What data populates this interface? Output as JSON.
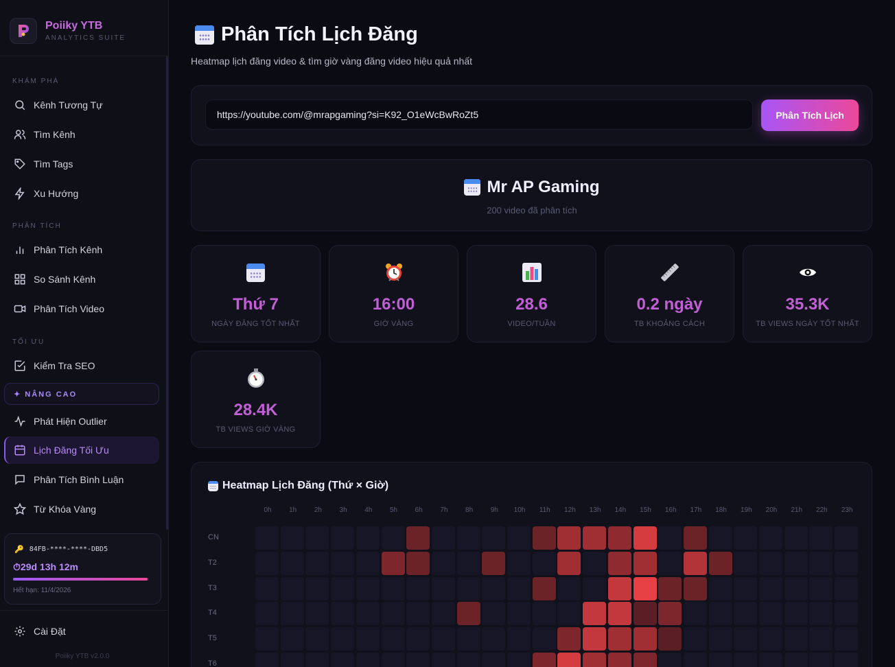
{
  "brand": {
    "name": "Poiiky YTB",
    "subtitle": "ANALYTICS SUITE"
  },
  "sidebar": {
    "sections": [
      {
        "title": "KHÁM PHÁ",
        "items": [
          {
            "label": "Kênh Tương Tự",
            "icon": "search-icon"
          },
          {
            "label": "Tìm Kênh",
            "icon": "users-icon"
          },
          {
            "label": "Tìm Tags",
            "icon": "tag-icon"
          },
          {
            "label": "Xu Hướng",
            "icon": "bolt-icon"
          }
        ]
      },
      {
        "title": "PHÂN TÍCH",
        "items": [
          {
            "label": "Phân Tích Kênh",
            "icon": "bar-chart-icon"
          },
          {
            "label": "So Sánh Kênh",
            "icon": "grid-icon"
          },
          {
            "label": "Phân Tích Video",
            "icon": "video-icon"
          }
        ]
      },
      {
        "title": "TỐI ƯU",
        "items": [
          {
            "label": "Kiểm Tra SEO",
            "icon": "check-square-icon"
          }
        ]
      }
    ],
    "advanced_badge": "✦ NÂNG CAO",
    "advanced_items": [
      {
        "label": "Phát Hiện Outlier",
        "icon": "activity-icon"
      },
      {
        "label": "Lịch Đăng Tối Ưu",
        "icon": "calendar-icon",
        "active": true
      },
      {
        "label": "Phân Tích Bình Luận",
        "icon": "message-icon"
      },
      {
        "label": "Từ Khóa Vàng",
        "icon": "star-icon"
      }
    ],
    "license": {
      "key": "84FB-****-****-DBD5",
      "remaining": "29d 13h 12m",
      "remaining_fraction": 0.99,
      "expires": "Hết hạn: 11/4/2026"
    },
    "settings_label": "Cài Đặt",
    "version": "Poiiky YTB v2.0.0"
  },
  "page": {
    "title": "Phân Tích Lịch Đăng",
    "subtitle": "Heatmap lịch đăng video & tìm giờ vàng đăng video hiệu quả nhất"
  },
  "search": {
    "value": "https://youtube.com/@mrapgaming?si=K92_O1eWcBwRoZt5",
    "button_label": "Phân Tích Lịch"
  },
  "channel": {
    "name": "Mr AP Gaming",
    "videos_analyzed": "200 video đã phân tích"
  },
  "stats": [
    {
      "icon": "calendar-icon",
      "value": "Thứ 7",
      "label": "NGÀY ĐĂNG TỐT NHẤT"
    },
    {
      "icon": "alarm-clock-icon",
      "value": "16:00",
      "label": "GIỜ VÀNG"
    },
    {
      "icon": "bar-chart-icon",
      "value": "28.6",
      "label": "VIDEO/TUẦN"
    },
    {
      "icon": "ruler-icon",
      "value": "0.2 ngày",
      "label": "TB KHOẢNG CÁCH"
    },
    {
      "icon": "eye-icon",
      "value": "35.3K",
      "label": "TB VIEWS NGÀY TỐT NHẤT"
    },
    {
      "icon": "stopwatch-icon",
      "value": "28.4K",
      "label": "TB VIEWS GIỜ VÀNG"
    }
  ],
  "chart_data": {
    "type": "heatmap",
    "title": "Heatmap Lịch Đăng (Thứ × Giờ)",
    "x": [
      "0h",
      "1h",
      "2h",
      "3h",
      "4h",
      "5h",
      "6h",
      "7h",
      "8h",
      "9h",
      "10h",
      "11h",
      "12h",
      "13h",
      "14h",
      "15h",
      "16h",
      "17h",
      "18h",
      "19h",
      "20h",
      "21h",
      "22h",
      "23h"
    ],
    "y": [
      "CN",
      "T2",
      "T3",
      "T4",
      "T5",
      "T6"
    ],
    "values": [
      [
        0,
        0,
        0,
        0,
        0,
        0,
        3,
        0,
        0,
        0,
        0,
        3,
        6,
        6,
        5,
        9,
        0,
        3,
        0,
        0,
        0,
        0,
        0,
        0
      ],
      [
        0,
        0,
        0,
        0,
        0,
        4,
        3,
        0,
        0,
        3,
        0,
        0,
        6,
        0,
        5,
        6,
        0,
        7,
        3,
        0,
        0,
        0,
        0,
        0
      ],
      [
        0,
        0,
        0,
        0,
        0,
        0,
        0,
        0,
        0,
        0,
        0,
        3,
        0,
        0,
        8,
        10,
        3,
        3,
        0,
        0,
        0,
        0,
        0,
        0
      ],
      [
        0,
        0,
        0,
        0,
        0,
        0,
        0,
        0,
        3,
        0,
        0,
        0,
        0,
        8,
        8,
        2,
        4,
        0,
        0,
        0,
        0,
        0,
        0,
        0
      ],
      [
        0,
        0,
        0,
        0,
        0,
        0,
        0,
        0,
        0,
        0,
        0,
        0,
        4,
        8,
        6,
        6,
        2,
        0,
        0,
        0,
        0,
        0,
        0,
        0
      ],
      [
        0,
        0,
        0,
        0,
        0,
        0,
        0,
        0,
        0,
        0,
        0,
        4,
        9,
        6,
        5,
        4,
        0,
        0,
        0,
        0,
        0,
        0,
        0,
        0
      ]
    ]
  }
}
